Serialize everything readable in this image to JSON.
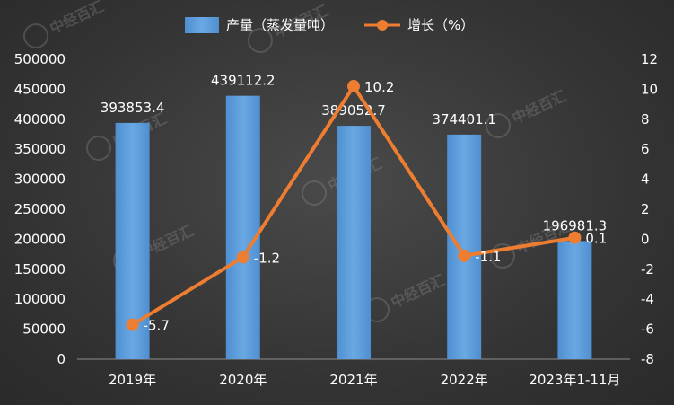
{
  "chart_data": {
    "type": "bar+line",
    "categories": [
      "2019年",
      "2020年",
      "2021年",
      "2022年",
      "2023年1-11月"
    ],
    "series": [
      {
        "name": "产量（蒸发量吨）",
        "type": "bar",
        "axis": "left",
        "values": [
          393853.4,
          439112.2,
          389052.7,
          374401.1,
          196981.3
        ],
        "labels": [
          "393853.4",
          "439112.2",
          "389052.7",
          "374401.1",
          "196981.3"
        ]
      },
      {
        "name": "增长（%）",
        "type": "line",
        "axis": "right",
        "values": [
          -5.7,
          -1.2,
          10.2,
          -1.1,
          0.1
        ],
        "labels": [
          "-5.7",
          "-1.2",
          "10.2",
          "-1.1",
          "0.1"
        ]
      }
    ],
    "y_left": {
      "min": 0,
      "max": 500000,
      "step": 50000,
      "ticks": [
        "0",
        "50000",
        "100000",
        "150000",
        "200000",
        "250000",
        "300000",
        "350000",
        "400000",
        "450000",
        "500000"
      ]
    },
    "y_right": {
      "min": -8,
      "max": 12,
      "step": 2,
      "ticks": [
        "-8",
        "-6",
        "-4",
        "-2",
        "0",
        "2",
        "4",
        "6",
        "8",
        "10",
        "12"
      ]
    },
    "legend_position": "top-center",
    "grid": false,
    "colors": {
      "bar": "#5b9bd5",
      "line": "#ed7d31",
      "text": "#ffffff"
    }
  },
  "watermark": {
    "text": "中经百汇"
  }
}
